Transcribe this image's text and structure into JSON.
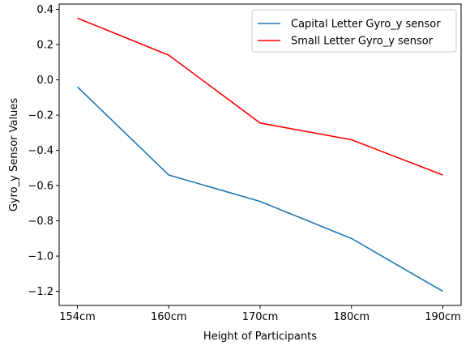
{
  "chart_data": {
    "type": "line",
    "title": "",
    "xlabel": "Height of Participants",
    "ylabel": "Gyro_y Sensor Values",
    "categories": [
      "154cm",
      "160cm",
      "170cm",
      "180cm",
      "190cm"
    ],
    "ylim": [
      -1.28,
      0.43
    ],
    "yticks": [
      0.4,
      0.2,
      0.0,
      -0.2,
      -0.4,
      -0.6,
      -0.8,
      -1.0,
      -1.2
    ],
    "ytick_labels": [
      "0.4",
      "0.2",
      "0.0",
      "−0.2",
      "−0.4",
      "−0.6",
      "−0.8",
      "−1.0",
      "−1.2"
    ],
    "grid": false,
    "legend_position": "top-right",
    "series": [
      {
        "name": "Capital Letter Gyro_y sensor",
        "color": "#1f77b4",
        "values": [
          -0.04,
          -0.54,
          -0.69,
          -0.9,
          -1.2
        ]
      },
      {
        "name": "Small Letter Gyro_y sensor",
        "color": "#ff0000",
        "values": [
          0.35,
          0.14,
          -0.245,
          -0.34,
          -0.54
        ]
      }
    ]
  }
}
